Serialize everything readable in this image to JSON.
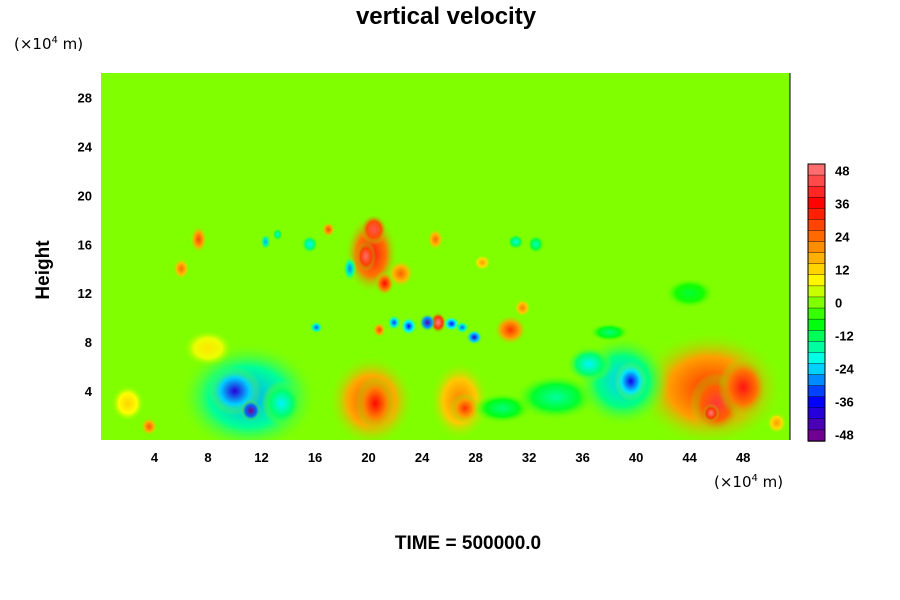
{
  "chart_data": {
    "type": "heatmap",
    "title": "vertical velocity",
    "xlabel": "",
    "ylabel": "Height",
    "x_unit": {
      "prefix": "(×10",
      "exp": "4",
      "suffix": " m)"
    },
    "y_unit": {
      "prefix": "(×10",
      "exp": "4",
      "suffix": " m)"
    },
    "xlim": [
      0,
      51.5
    ],
    "ylim": [
      0,
      30
    ],
    "x_ticks": [
      "4",
      "8",
      "12",
      "16",
      "20",
      "24",
      "28",
      "32",
      "36",
      "40",
      "44",
      "48"
    ],
    "y_ticks": [
      "4",
      "8",
      "12",
      "16",
      "20",
      "24",
      "28"
    ],
    "colorbar": {
      "range": [
        -50,
        50
      ],
      "ticks": [
        "48",
        "36",
        "24",
        "12",
        "0",
        "-12",
        "-24",
        "-36",
        "-48"
      ]
    },
    "background_value": 0,
    "features": [
      {
        "x": 20.2,
        "y": 3.2,
        "rx": 2.6,
        "ry": 3.0,
        "value": 28
      },
      {
        "x": 20.5,
        "y": 3.0,
        "rx": 1.2,
        "ry": 1.8,
        "value": 35
      },
      {
        "x": 26.8,
        "y": 3.2,
        "rx": 1.8,
        "ry": 2.6,
        "value": 22
      },
      {
        "x": 27.2,
        "y": 2.6,
        "rx": 0.9,
        "ry": 1.0,
        "value": 30
      },
      {
        "x": 45.5,
        "y": 4.2,
        "rx": 4.5,
        "ry": 3.8,
        "value": 30
      },
      {
        "x": 46.0,
        "y": 3.0,
        "rx": 1.6,
        "ry": 2.0,
        "value": 42
      },
      {
        "x": 45.6,
        "y": 2.2,
        "rx": 0.5,
        "ry": 0.6,
        "value": 50
      },
      {
        "x": 48.0,
        "y": 4.3,
        "rx": 1.5,
        "ry": 2.0,
        "value": 38
      },
      {
        "x": 3.6,
        "y": 1.1,
        "rx": 0.5,
        "ry": 0.6,
        "value": 26
      },
      {
        "x": 11.0,
        "y": 3.5,
        "rx": 4.2,
        "ry": 3.6,
        "value": -26
      },
      {
        "x": 10.0,
        "y": 4.0,
        "rx": 1.6,
        "ry": 1.6,
        "value": -40
      },
      {
        "x": 11.2,
        "y": 2.4,
        "rx": 0.6,
        "ry": 0.7,
        "value": -50
      },
      {
        "x": 13.5,
        "y": 3.0,
        "rx": 1.2,
        "ry": 1.5,
        "value": -22
      },
      {
        "x": 30.0,
        "y": 2.6,
        "rx": 1.8,
        "ry": 1.0,
        "value": -14
      },
      {
        "x": 34.0,
        "y": 3.5,
        "rx": 2.5,
        "ry": 1.5,
        "value": -16
      },
      {
        "x": 39.0,
        "y": 4.8,
        "rx": 2.8,
        "ry": 3.0,
        "value": -24
      },
      {
        "x": 39.6,
        "y": 4.8,
        "rx": 1.0,
        "ry": 1.3,
        "value": -38
      },
      {
        "x": 36.5,
        "y": 6.2,
        "rx": 1.4,
        "ry": 1.2,
        "value": -22
      },
      {
        "x": 30.6,
        "y": 9.0,
        "rx": 1.0,
        "ry": 1.0,
        "value": 30
      },
      {
        "x": 20.2,
        "y": 15.2,
        "rx": 1.6,
        "ry": 2.6,
        "value": 38
      },
      {
        "x": 20.4,
        "y": 17.2,
        "rx": 0.8,
        "ry": 1.0,
        "value": 45
      },
      {
        "x": 19.8,
        "y": 15.0,
        "rx": 0.6,
        "ry": 1.0,
        "value": 48
      },
      {
        "x": 21.2,
        "y": 12.8,
        "rx": 0.6,
        "ry": 0.8,
        "value": 35
      },
      {
        "x": 22.4,
        "y": 13.6,
        "rx": 0.8,
        "ry": 0.9,
        "value": 25
      },
      {
        "x": 18.6,
        "y": 14.0,
        "rx": 0.4,
        "ry": 0.8,
        "value": -28
      },
      {
        "x": 25.2,
        "y": 9.6,
        "rx": 0.5,
        "ry": 0.7,
        "value": 50
      },
      {
        "x": 24.4,
        "y": 9.6,
        "rx": 0.5,
        "ry": 0.6,
        "value": -45
      },
      {
        "x": 23.0,
        "y": 9.3,
        "rx": 0.5,
        "ry": 0.6,
        "value": -35
      },
      {
        "x": 21.9,
        "y": 9.6,
        "rx": 0.4,
        "ry": 0.5,
        "value": -32
      },
      {
        "x": 26.2,
        "y": 9.5,
        "rx": 0.5,
        "ry": 0.5,
        "value": -35
      },
      {
        "x": 27.0,
        "y": 9.2,
        "rx": 0.4,
        "ry": 0.4,
        "value": -30
      },
      {
        "x": 27.9,
        "y": 8.4,
        "rx": 0.5,
        "ry": 0.5,
        "value": -40
      },
      {
        "x": 20.8,
        "y": 9.0,
        "rx": 0.4,
        "ry": 0.5,
        "value": 28
      },
      {
        "x": 16.1,
        "y": 9.2,
        "rx": 0.4,
        "ry": 0.4,
        "value": -30
      },
      {
        "x": 7.3,
        "y": 16.4,
        "rx": 0.5,
        "ry": 0.9,
        "value": 28
      },
      {
        "x": 6.0,
        "y": 14.0,
        "rx": 0.5,
        "ry": 0.7,
        "value": 24
      },
      {
        "x": 17.0,
        "y": 17.2,
        "rx": 0.4,
        "ry": 0.5,
        "value": 28
      },
      {
        "x": 15.6,
        "y": 16.0,
        "rx": 0.5,
        "ry": 0.6,
        "value": -22
      },
      {
        "x": 12.3,
        "y": 16.2,
        "rx": 0.3,
        "ry": 0.5,
        "value": -26
      },
      {
        "x": 13.2,
        "y": 16.8,
        "rx": 0.3,
        "ry": 0.4,
        "value": -20
      },
      {
        "x": 25.0,
        "y": 16.4,
        "rx": 0.5,
        "ry": 0.7,
        "value": 24
      },
      {
        "x": 31.0,
        "y": 16.2,
        "rx": 0.5,
        "ry": 0.5,
        "value": -20
      },
      {
        "x": 32.5,
        "y": 16.0,
        "rx": 0.5,
        "ry": 0.6,
        "value": -18
      },
      {
        "x": 31.5,
        "y": 10.8,
        "rx": 0.5,
        "ry": 0.6,
        "value": 22
      },
      {
        "x": 28.5,
        "y": 14.5,
        "rx": 0.5,
        "ry": 0.5,
        "value": 18
      },
      {
        "x": 38.0,
        "y": 8.8,
        "rx": 1.2,
        "ry": 0.6,
        "value": -14
      },
      {
        "x": 2.0,
        "y": 3.0,
        "rx": 1.0,
        "ry": 1.2,
        "value": 12
      },
      {
        "x": 50.5,
        "y": 1.4,
        "rx": 0.6,
        "ry": 0.7,
        "value": 18
      },
      {
        "x": 44.0,
        "y": 12.0,
        "rx": 1.5,
        "ry": 1.0,
        "value": -10
      },
      {
        "x": 8.0,
        "y": 7.5,
        "rx": 1.5,
        "ry": 1.2,
        "value": 10
      }
    ]
  },
  "footer": {
    "time_label": "TIME = 500000.0"
  },
  "colors": {
    "background": "#00ff00",
    "colormap": [
      "#800080",
      "#0000ff",
      "#00ffff",
      "#00ff00",
      "#ffff00",
      "#ff8000",
      "#ff0000",
      "#ff8080"
    ]
  }
}
